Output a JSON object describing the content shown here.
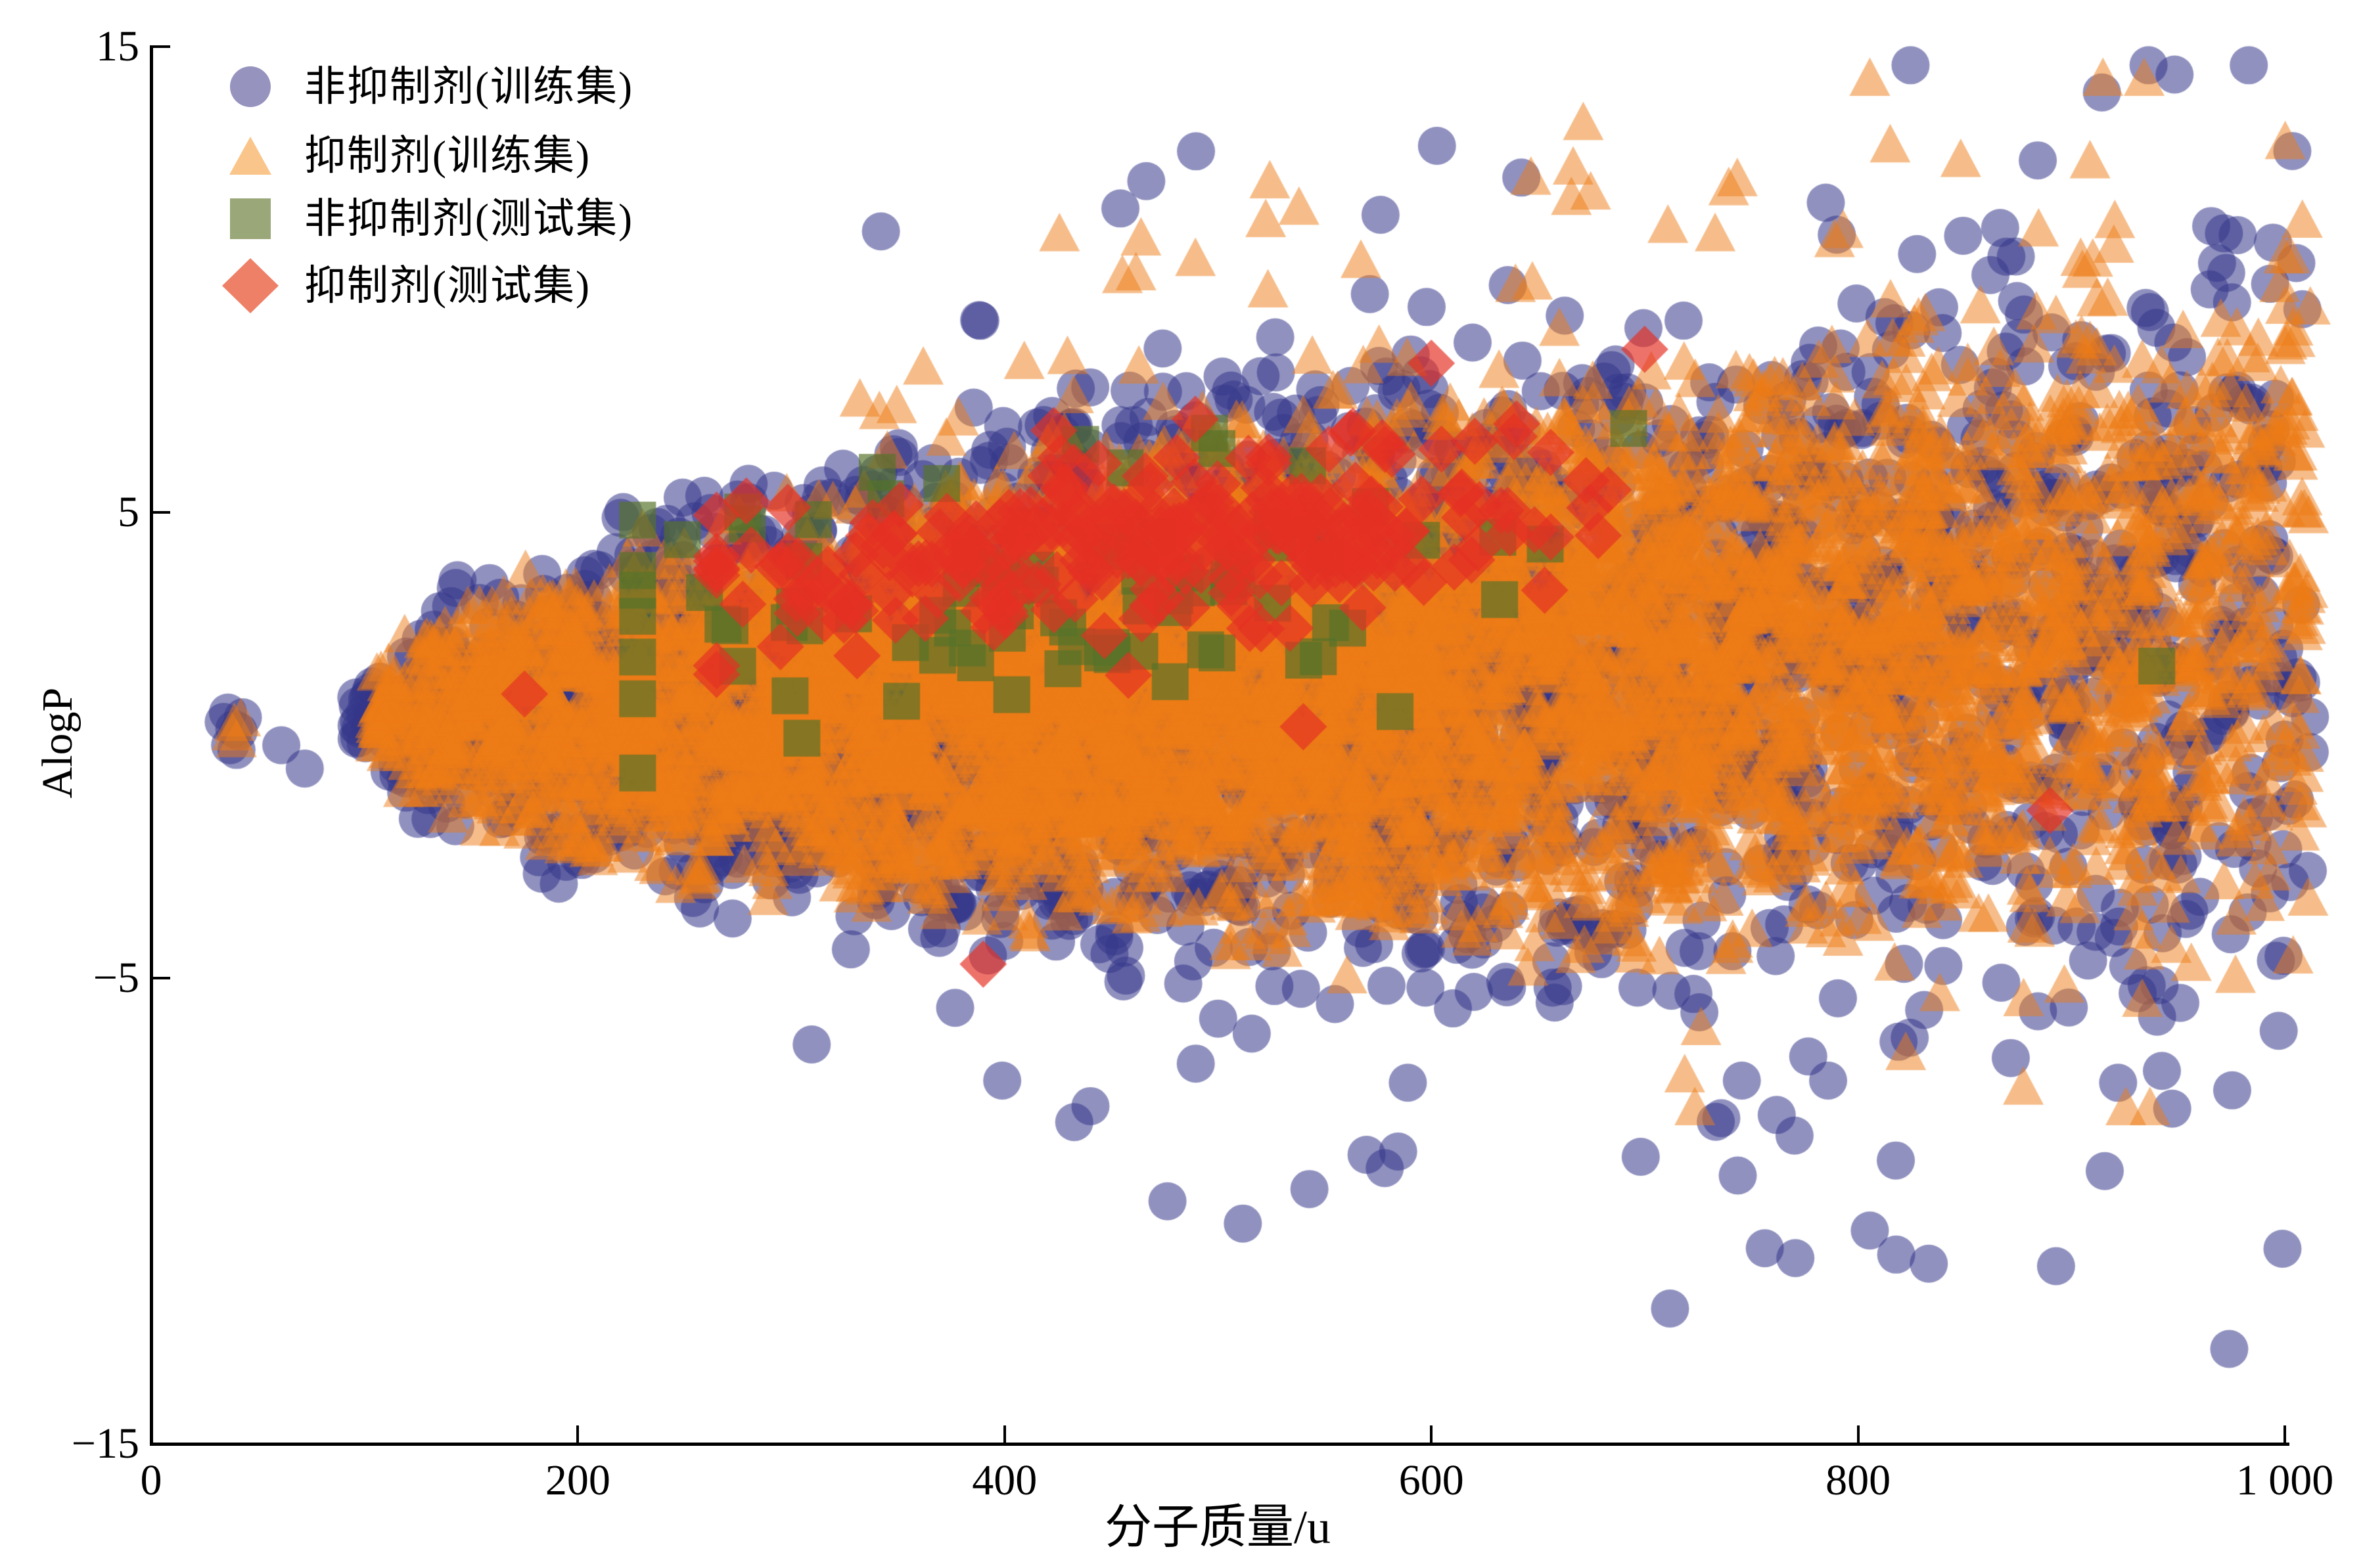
{
  "figure": {
    "background": "#ffffff",
    "x_axis": {
      "label": "分子质量/u",
      "ticks": [
        {
          "v": 0,
          "label": "0",
          "tick": false
        },
        {
          "v": 200,
          "label": "200",
          "tick": true
        },
        {
          "v": 400,
          "label": "400",
          "tick": true
        },
        {
          "v": 600,
          "label": "600",
          "tick": true
        },
        {
          "v": 800,
          "label": "800",
          "tick": true
        },
        {
          "v": 1000,
          "label": "1 000",
          "tick": true
        }
      ]
    },
    "y_axis": {
      "label": "AlogP",
      "ticks": [
        {
          "v": 15,
          "label": "15",
          "tick": true
        },
        {
          "v": 5,
          "label": "5",
          "tick": true
        },
        {
          "v": -5,
          "label": "−5",
          "tick": true
        },
        {
          "v": -15,
          "label": "−15",
          "tick": false
        }
      ]
    },
    "legend": [
      {
        "label": "非抑制剂(训练集)",
        "marker": "circle",
        "color": "#9693be"
      },
      {
        "label": "抑制剂(训练集)",
        "marker": "triangle",
        "color": "#fac58a"
      },
      {
        "label": "非抑制剂(测试集)",
        "marker": "square",
        "color": "#9aa778"
      },
      {
        "label": "抑制剂(测试集)",
        "marker": "diamond",
        "color": "#ee8067"
      }
    ]
  },
  "chart_data": {
    "type": "scatter",
    "title": "",
    "xlabel": "分子质量/u",
    "ylabel": "AlogP",
    "xlim": [
      0,
      1000
    ],
    "ylim": [
      -15,
      15
    ],
    "x_ticks": [
      0,
      200,
      400,
      600,
      800,
      1000
    ],
    "y_ticks": [
      15,
      5,
      -5,
      -15
    ],
    "grid": false,
    "legend_position": "upper-left",
    "overplotted": true,
    "seed": 11,
    "funnel": {
      "c0": 0.3,
      "c1": 0.0024,
      "hs": 8.0,
      "hx0": 100,
      "hspan": 900,
      "hpow": 0.38,
      "hmin": 0.5
    },
    "series": [
      {
        "name": "非抑制剂(训练集)",
        "class": "non-inhibitor",
        "set": "train",
        "marker": "circle",
        "fill": "rgb(52,55,138)",
        "alpha": 0.55,
        "size": 58,
        "n": 3300,
        "gen": {
          "kind": "funnel",
          "tri": 0.55,
          "xpeak": 340,
          "xmin": 95,
          "xmax": 1012,
          "hmult": 1.13,
          "outliers": {
            "n": 92,
            "top_frac": 0.44,
            "reach": [
              1.05,
              2.05
            ],
            "ylim": [
              -13.3,
              14.6
            ],
            "xmin": 300,
            "xpow": 0.8
          }
        },
        "extra_points": [
          [
            34,
            0.5
          ],
          [
            41,
            0.3
          ],
          [
            37,
            0.0
          ],
          [
            43,
            0.6
          ],
          [
            36,
            0.7
          ],
          [
            40,
            -0.1
          ],
          [
            39,
            0.35
          ],
          [
            61,
            0.0
          ],
          [
            72,
            -0.5
          ]
        ]
      },
      {
        "name": "抑制剂(训练集)",
        "class": "inhibitor",
        "set": "train",
        "marker": "triangle",
        "fill": "rgb(238,124,22)",
        "alpha": 0.5,
        "size": 62,
        "n": 5400,
        "gen": {
          "kind": "funnel",
          "tri": 0.5,
          "xpeak": 460,
          "xmin": 105,
          "xmax": 1012,
          "hmult": 0.98,
          "outliers": {
            "n": 64,
            "top_frac": 0.86,
            "reach": [
              1.03,
              1.8
            ],
            "ylim": [
              -7.8,
              14.3
            ],
            "xmin": 300,
            "xpow": 0.95
          }
        },
        "extra_points": [
          [
            38,
            0.25
          ],
          [
            39,
            0.45
          ],
          [
            40,
            0.1
          ],
          [
            42,
            0.55
          ]
        ]
      },
      {
        "name": "非抑制剂(测试集)",
        "class": "non-inhibitor",
        "set": "test",
        "marker": "square",
        "fill": "rgb(85,115,42)",
        "alpha": 0.68,
        "size": 56,
        "n": 82,
        "gen": {
          "kind": "gauss",
          "mean": [
            425,
            3.2
          ],
          "sd": [
            108,
            1.5
          ],
          "rho": 0.25,
          "xclip": [
            228,
            705
          ],
          "yclip": [
            -0.6,
            7.0
          ]
        },
        "extra_points": [
          [
            940,
            1.7
          ],
          [
            305,
            0.15
          ],
          [
            268,
            2.6
          ],
          [
            496,
            6.7
          ],
          [
            542,
            6.0
          ]
        ]
      },
      {
        "name": "抑制剂(测试集)",
        "class": "inhibitor",
        "set": "test",
        "marker": "diamond",
        "fill": "rgb(228,48,35)",
        "alpha": 0.68,
        "size": 72,
        "n": 255,
        "gen": {
          "kind": "gauss",
          "mean": [
            452,
            4.25
          ],
          "sd": [
            95,
            0.98
          ],
          "rho": 0.4,
          "xclip": [
            265,
            690
          ],
          "yclip": [
            1.4,
            7.0
          ]
        },
        "extra_points": [
          [
            700,
            8.5
          ],
          [
            600,
            8.2
          ],
          [
            577,
            6.5
          ],
          [
            640,
            6.9
          ],
          [
            175,
            1.1
          ],
          [
            390,
            -4.7
          ],
          [
            890,
            -1.4
          ],
          [
            540,
            0.4
          ]
        ]
      }
    ]
  }
}
